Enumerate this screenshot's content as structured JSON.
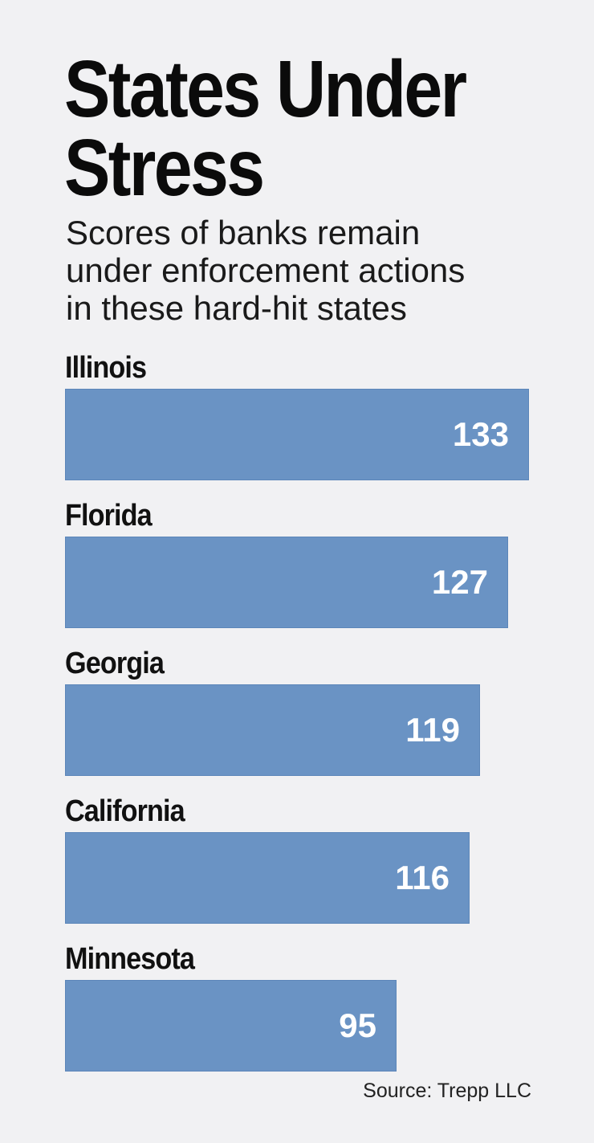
{
  "chart_data": {
    "type": "bar",
    "orientation": "horizontal",
    "title": "States Under Stress",
    "title_lines": [
      "States Under",
      "Stress"
    ],
    "subtitle": "Scores of banks remain under enforcement actions in these hard-hit states",
    "subtitle_lines": [
      "Scores of banks remain",
      "under enforcement actions",
      "in these hard-hit states"
    ],
    "categories": [
      "Illinois",
      "Florida",
      "Georgia",
      "California",
      "Minnesota"
    ],
    "values": [
      133,
      127,
      119,
      116,
      95
    ],
    "xlabel": "",
    "ylabel": "",
    "xlim": [
      0,
      133
    ],
    "grid": false,
    "source": "Source: Trepp LLC",
    "colors": {
      "bar": "#6a93c4",
      "bar_value_text": "#ffffff",
      "background": "#f1f1f3"
    }
  }
}
